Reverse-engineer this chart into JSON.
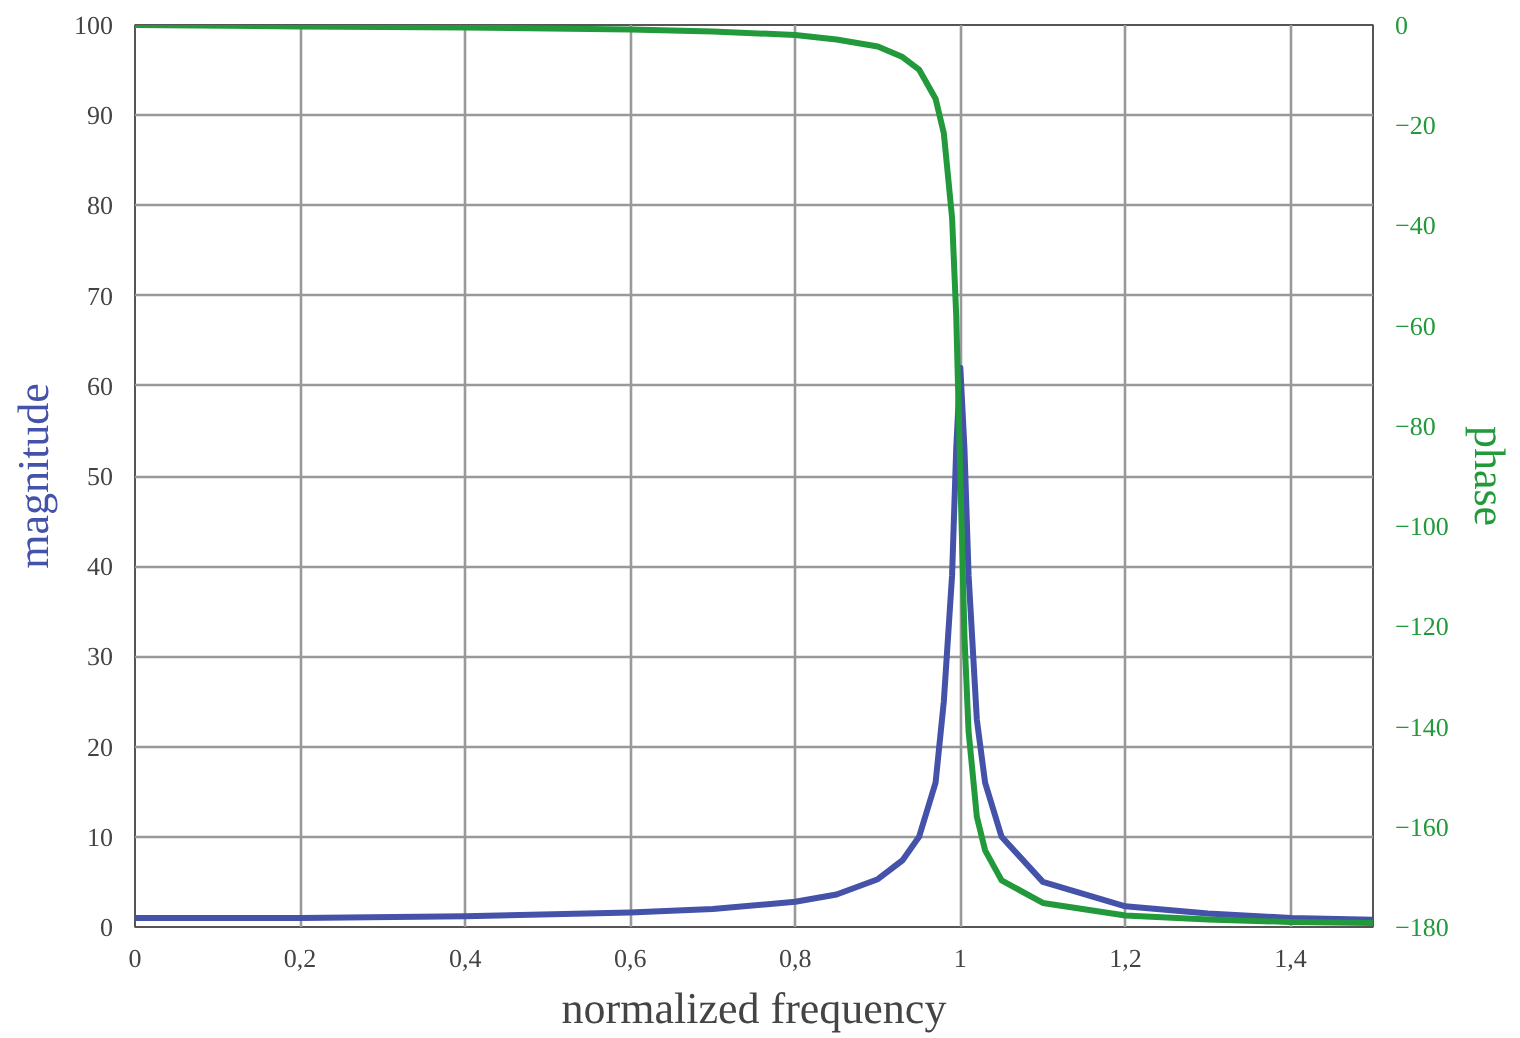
{
  "chart_data": {
    "type": "line",
    "xlabel": "normalized frequency",
    "ylabel": "magnitude",
    "y2label": "phase",
    "x": [
      0,
      0.2,
      0.4,
      0.6,
      0.7,
      0.8,
      0.85,
      0.9,
      0.93,
      0.95,
      0.97,
      0.98,
      0.99,
      0.995,
      1.0,
      1.005,
      1.01,
      1.02,
      1.03,
      1.05,
      1.1,
      1.2,
      1.3,
      1.4,
      1.5
    ],
    "series": [
      {
        "color": "#4452aa",
        "values": [
          1,
          1,
          1.2,
          1.6,
          2,
          2.8,
          3.6,
          5.3,
          7.4,
          10,
          16,
          25,
          39,
          53,
          62,
          53,
          39,
          23,
          16,
          10,
          5,
          2.3,
          1.5,
          1,
          0.8
        ]
      },
      {
        "color": "#22993a",
        "axis": "y2",
        "values": [
          0,
          -0.3,
          -0.5,
          -0.9,
          -1.3,
          -2,
          -2.9,
          -4.3,
          -6.4,
          -8.9,
          -14.7,
          -21.6,
          -38.5,
          -57.9,
          -90,
          -122,
          -141,
          -158,
          -164.7,
          -170.7,
          -175.2,
          -177.7,
          -178.5,
          -179,
          -179.2
        ]
      }
    ],
    "xlim": [
      0,
      1.5
    ],
    "xticks": [
      0,
      {
        "value": 0.2,
        "label": "0,2"
      },
      {
        "value": 0.4,
        "label": "0,4"
      },
      {
        "value": 0.6,
        "label": "0,6"
      },
      {
        "value": 0.8,
        "label": "0,8"
      },
      1,
      {
        "value": 1.2,
        "label": "1,2"
      },
      {
        "value": 1.4,
        "label": "1,4"
      }
    ],
    "ylim": [
      0,
      100
    ],
    "yticks": [
      0,
      10,
      20,
      30,
      40,
      50,
      60,
      70,
      80,
      90,
      100
    ],
    "y2lim": [
      -180,
      0
    ],
    "y2ticks": [
      0,
      -20,
      -40,
      -60,
      -80,
      -100,
      -120,
      -140,
      -160,
      -180
    ],
    "grid": true,
    "marker": "none",
    "line_style": "solid"
  }
}
